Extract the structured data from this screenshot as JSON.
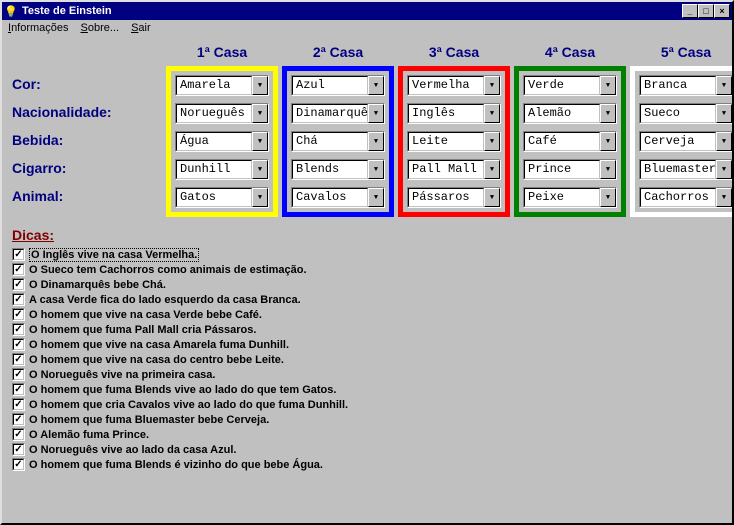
{
  "window": {
    "title": "Teste de Einstein"
  },
  "menu": {
    "items": [
      {
        "label": "Informações",
        "ul": 0
      },
      {
        "label": "Sobre...",
        "ul": 0
      },
      {
        "label": "Sair",
        "ul": 0
      }
    ]
  },
  "headers": [
    "1ª Casa",
    "2ª Casa",
    "3ª Casa",
    "4ª Casa",
    "5ª Casa"
  ],
  "row_labels": [
    "Cor:",
    "Nacionalidade:",
    "Bebida:",
    "Cigarro:",
    "Animal:"
  ],
  "houses": [
    {
      "border_color": "#ffff00",
      "values": [
        "Amarela",
        "Norueguês",
        "Água",
        "Dunhill",
        "Gatos"
      ]
    },
    {
      "border_color": "#0000ff",
      "values": [
        "Azul",
        "Dinamarquês",
        "Chá",
        "Blends",
        "Cavalos"
      ]
    },
    {
      "border_color": "#ff0000",
      "values": [
        "Vermelha",
        "Inglês",
        "Leite",
        "Pall Mall",
        "Pássaros"
      ]
    },
    {
      "border_color": "#008000",
      "values": [
        "Verde",
        "Alemão",
        "Café",
        "Prince",
        "Peixe"
      ]
    },
    {
      "border_color": "#ffffff",
      "values": [
        "Branca",
        "Sueco",
        "Cerveja",
        "Bluemaster",
        "Cachorros"
      ]
    }
  ],
  "dicas_title": "Dicas:",
  "hints": [
    "O Inglês vive na casa Vermelha.",
    "O Sueco tem Cachorros como animais de estimação.",
    "O Dinamarquês bebe Chá.",
    "A casa Verde fica do lado esquerdo da casa Branca.",
    "O homem que vive na casa Verde bebe Café.",
    "O homem que fuma Pall Mall cria Pássaros.",
    "O homem que vive na casa Amarela fuma Dunhill.",
    "O homem que vive na casa do centro bebe Leite.",
    "O Norueguês vive na primeira casa.",
    "O homem que fuma Blends vive ao lado do que tem Gatos.",
    "O homem que cria Cavalos vive ao lado do que fuma Dunhill.",
    "O homem que fuma Bluemaster bebe Cerveja.",
    "O Alemão fuma Prince.",
    "O Norueguês vive ao lado da casa Azul.",
    "O homem que fuma Blends é vizinho do que bebe Água."
  ],
  "ui": {
    "background": "#c0c0c0",
    "titlebar_bg": "#000080",
    "label_color": "#000080",
    "dicas_color": "#800000"
  }
}
